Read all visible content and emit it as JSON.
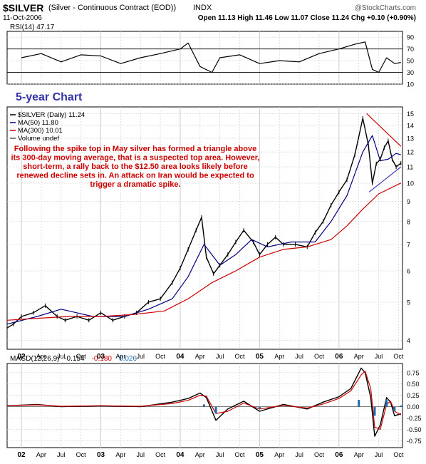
{
  "header": {
    "symbol": "$SILVER",
    "name": "(Silver - Continuous Contract (EOD))",
    "exchange": "INDX",
    "date": "11-Oct-2006",
    "watermark": "@StockCharts.com",
    "quote": "Open 11.13  High 11.46  Low 11.07  Close 11.24  Chg +0.10 (+0.90%)"
  },
  "chart_data": [
    {
      "type": "line",
      "panel": "rsi",
      "legend": "RSI(14) 47.17",
      "yticks": [
        10,
        30,
        50,
        70,
        90
      ],
      "ylim": [
        10,
        100
      ],
      "overbought": 70,
      "oversold": 30,
      "series": [
        {
          "name": "RSI(14)",
          "color": "#000000",
          "x": [
            2002.0,
            2002.25,
            2002.5,
            2002.75,
            2003.0,
            2003.25,
            2003.5,
            2003.75,
            2004.0,
            2004.1,
            2004.25,
            2004.4,
            2004.5,
            2004.75,
            2005.0,
            2005.25,
            2005.5,
            2005.75,
            2006.0,
            2006.2,
            2006.33,
            2006.42,
            2006.5,
            2006.6,
            2006.7,
            2006.78
          ],
          "values": [
            55,
            62,
            48,
            60,
            58,
            45,
            55,
            62,
            70,
            80,
            40,
            30,
            55,
            60,
            45,
            50,
            48,
            62,
            70,
            78,
            82,
            35,
            30,
            55,
            45,
            47
          ]
        }
      ]
    },
    {
      "type": "line",
      "panel": "price",
      "scale": "log",
      "title": "5-year Chart",
      "legend": [
        "$SILVER (Daily) 11.24",
        "MA(50) 11.80",
        "MA(300) 10.01",
        "Volume undef"
      ],
      "annotation": "Following the spike top in May silver has formed a triangle above its 300-day moving average, that is a suspected top area. However, short-term, a rally back to the $12.50 area looks likely before renewed decline sets in. An attack on Iran would be expected to trigger a dramatic spike.",
      "yticks": [
        4,
        5,
        6,
        7,
        8,
        9,
        10,
        11,
        12,
        13,
        14,
        15
      ],
      "ylim": [
        3.8,
        15.6
      ],
      "series": [
        {
          "name": "$SILVER (Daily)",
          "color": "#000000",
          "x": [
            2001.82,
            2001.9,
            2002.0,
            2002.15,
            2002.3,
            2002.45,
            2002.55,
            2002.7,
            2002.85,
            2003.0,
            2003.15,
            2003.3,
            2003.45,
            2003.6,
            2003.75,
            2003.9,
            2004.0,
            2004.1,
            2004.2,
            2004.27,
            2004.33,
            2004.42,
            2004.5,
            2004.6,
            2004.7,
            2004.8,
            2004.92,
            2005.0,
            2005.1,
            2005.2,
            2005.3,
            2005.45,
            2005.6,
            2005.7,
            2005.8,
            2005.9,
            2006.0,
            2006.1,
            2006.2,
            2006.3,
            2006.37,
            2006.42,
            2006.47,
            2006.52,
            2006.57,
            2006.62,
            2006.67,
            2006.72,
            2006.78
          ],
          "values": [
            4.3,
            4.4,
            4.6,
            4.7,
            4.9,
            4.6,
            4.5,
            4.6,
            4.5,
            4.7,
            4.5,
            4.6,
            4.7,
            5.0,
            5.1,
            5.6,
            6.1,
            6.8,
            7.6,
            8.2,
            6.5,
            5.9,
            6.2,
            6.6,
            7.1,
            7.6,
            7.1,
            6.6,
            7.0,
            7.3,
            7.0,
            7.0,
            6.9,
            7.5,
            8.0,
            8.8,
            9.5,
            10.2,
            11.8,
            14.6,
            12.5,
            10.0,
            11.2,
            11.5,
            12.3,
            12.8,
            11.5,
            11.0,
            11.24
          ]
        },
        {
          "name": "MA(50)",
          "color": "#000080",
          "x": [
            2001.82,
            2002.2,
            2002.5,
            2002.9,
            2003.3,
            2003.6,
            2003.9,
            2004.1,
            2004.3,
            2004.5,
            2004.7,
            2004.9,
            2005.1,
            2005.4,
            2005.7,
            2005.9,
            2006.1,
            2006.3,
            2006.42,
            2006.52,
            2006.62,
            2006.72,
            2006.78
          ],
          "values": [
            4.4,
            4.6,
            4.8,
            4.6,
            4.6,
            4.8,
            5.1,
            5.8,
            7.0,
            6.2,
            6.6,
            7.2,
            6.9,
            7.1,
            7.1,
            8.0,
            9.3,
            12.0,
            13.2,
            11.4,
            11.5,
            11.9,
            11.8
          ]
        },
        {
          "name": "MA(300)",
          "color": "#cc0000",
          "x": [
            2001.82,
            2002.2,
            2002.6,
            2003.0,
            2003.4,
            2003.8,
            2004.1,
            2004.4,
            2004.7,
            2005.0,
            2005.3,
            2005.6,
            2005.9,
            2006.1,
            2006.3,
            2006.5,
            2006.78
          ],
          "values": [
            4.5,
            4.55,
            4.6,
            4.6,
            4.65,
            4.75,
            5.1,
            5.6,
            6.0,
            6.5,
            6.8,
            6.9,
            7.2,
            7.8,
            8.6,
            9.4,
            10.01
          ]
        },
        {
          "name": "Triangle upper",
          "color": "#cc0000",
          "x": [
            2006.35,
            2006.78
          ],
          "values": [
            15.0,
            12.4
          ]
        },
        {
          "name": "Triangle lower",
          "color": "#4040c0",
          "x": [
            2006.38,
            2006.78
          ],
          "values": [
            9.5,
            11.0
          ]
        }
      ]
    },
    {
      "type": "line",
      "panel": "macd",
      "legend": [
        "MACD(12,26,9)",
        "-0.154",
        "-0.180",
        "0.026"
      ],
      "legend_colors": [
        "#000000",
        "#000000",
        "#cc0000",
        "#1f6bb0"
      ],
      "yticks": [
        0.75,
        0.5,
        0.25,
        0.0,
        -0.25,
        -0.5,
        -0.75
      ],
      "ylim": [
        -0.9,
        0.95
      ],
      "series": [
        {
          "name": "MACD",
          "color": "#000000",
          "x": [
            2001.82,
            2002.2,
            2002.5,
            2003.0,
            2003.5,
            2003.9,
            2004.1,
            2004.25,
            2004.33,
            2004.45,
            2004.6,
            2004.8,
            2005.0,
            2005.3,
            2005.6,
            2005.8,
            2006.0,
            2006.15,
            2006.28,
            2006.33,
            2006.4,
            2006.45,
            2006.52,
            2006.6,
            2006.65,
            2006.7,
            2006.78
          ],
          "values": [
            0.02,
            0.05,
            0.0,
            0.02,
            0.0,
            0.1,
            0.18,
            0.3,
            0.2,
            -0.3,
            -0.05,
            0.12,
            -0.1,
            0.05,
            -0.05,
            0.1,
            0.22,
            0.4,
            0.85,
            0.75,
            0.2,
            -0.65,
            -0.4,
            0.2,
            0.1,
            -0.2,
            -0.154
          ]
        },
        {
          "name": "Signal",
          "color": "#cc0000",
          "x": [
            2001.82,
            2002.2,
            2002.5,
            2003.0,
            2003.5,
            2003.9,
            2004.1,
            2004.25,
            2004.33,
            2004.45,
            2004.6,
            2004.8,
            2005.0,
            2005.3,
            2005.6,
            2005.8,
            2006.0,
            2006.15,
            2006.28,
            2006.33,
            2006.4,
            2006.45,
            2006.52,
            2006.6,
            2006.65,
            2006.7,
            2006.78
          ],
          "values": [
            0.02,
            0.04,
            0.01,
            0.02,
            0.01,
            0.07,
            0.14,
            0.25,
            0.23,
            -0.15,
            -0.1,
            0.08,
            -0.05,
            0.03,
            -0.03,
            0.06,
            0.18,
            0.35,
            0.7,
            0.78,
            0.4,
            -0.45,
            -0.5,
            0.05,
            0.12,
            -0.1,
            -0.18
          ]
        },
        {
          "name": "Histogram",
          "color": "#1f6bb0",
          "x": [
            2004.3,
            2004.45,
            2005.0,
            2006.25,
            2006.45,
            2006.6,
            2006.7,
            2006.78
          ],
          "values": [
            0.05,
            -0.15,
            -0.05,
            0.15,
            -0.2,
            0.15,
            -0.1,
            0.026
          ]
        }
      ]
    }
  ],
  "x_axis": {
    "ticks": [
      {
        "label": "02",
        "x": 2002.0,
        "bold": true
      },
      {
        "label": "Apr",
        "x": 2002.25
      },
      {
        "label": "Jul",
        "x": 2002.5
      },
      {
        "label": "Oct",
        "x": 2002.75
      },
      {
        "label": "03",
        "x": 2003.0,
        "bold": true
      },
      {
        "label": "Apr",
        "x": 2003.25
      },
      {
        "label": "Jul",
        "x": 2003.5
      },
      {
        "label": "Oct",
        "x": 2003.75
      },
      {
        "label": "04",
        "x": 2004.0,
        "bold": true
      },
      {
        "label": "Apr",
        "x": 2004.25
      },
      {
        "label": "Jul",
        "x": 2004.5
      },
      {
        "label": "Oct",
        "x": 2004.75
      },
      {
        "label": "05",
        "x": 2005.0,
        "bold": true
      },
      {
        "label": "Apr",
        "x": 2005.25
      },
      {
        "label": "Jul",
        "x": 2005.5
      },
      {
        "label": "Oct",
        "x": 2005.75
      },
      {
        "label": "06",
        "x": 2006.0,
        "bold": true
      },
      {
        "label": "Apr",
        "x": 2006.25
      },
      {
        "label": "Jul",
        "x": 2006.5
      },
      {
        "label": "Oct",
        "x": 2006.75
      }
    ],
    "xlim": [
      2001.82,
      2006.8
    ]
  },
  "colors": {
    "title": "#3333aa",
    "annotation": "#cc0000",
    "grid": "#cccccc",
    "rsi_fill": "#3a7a3a"
  }
}
